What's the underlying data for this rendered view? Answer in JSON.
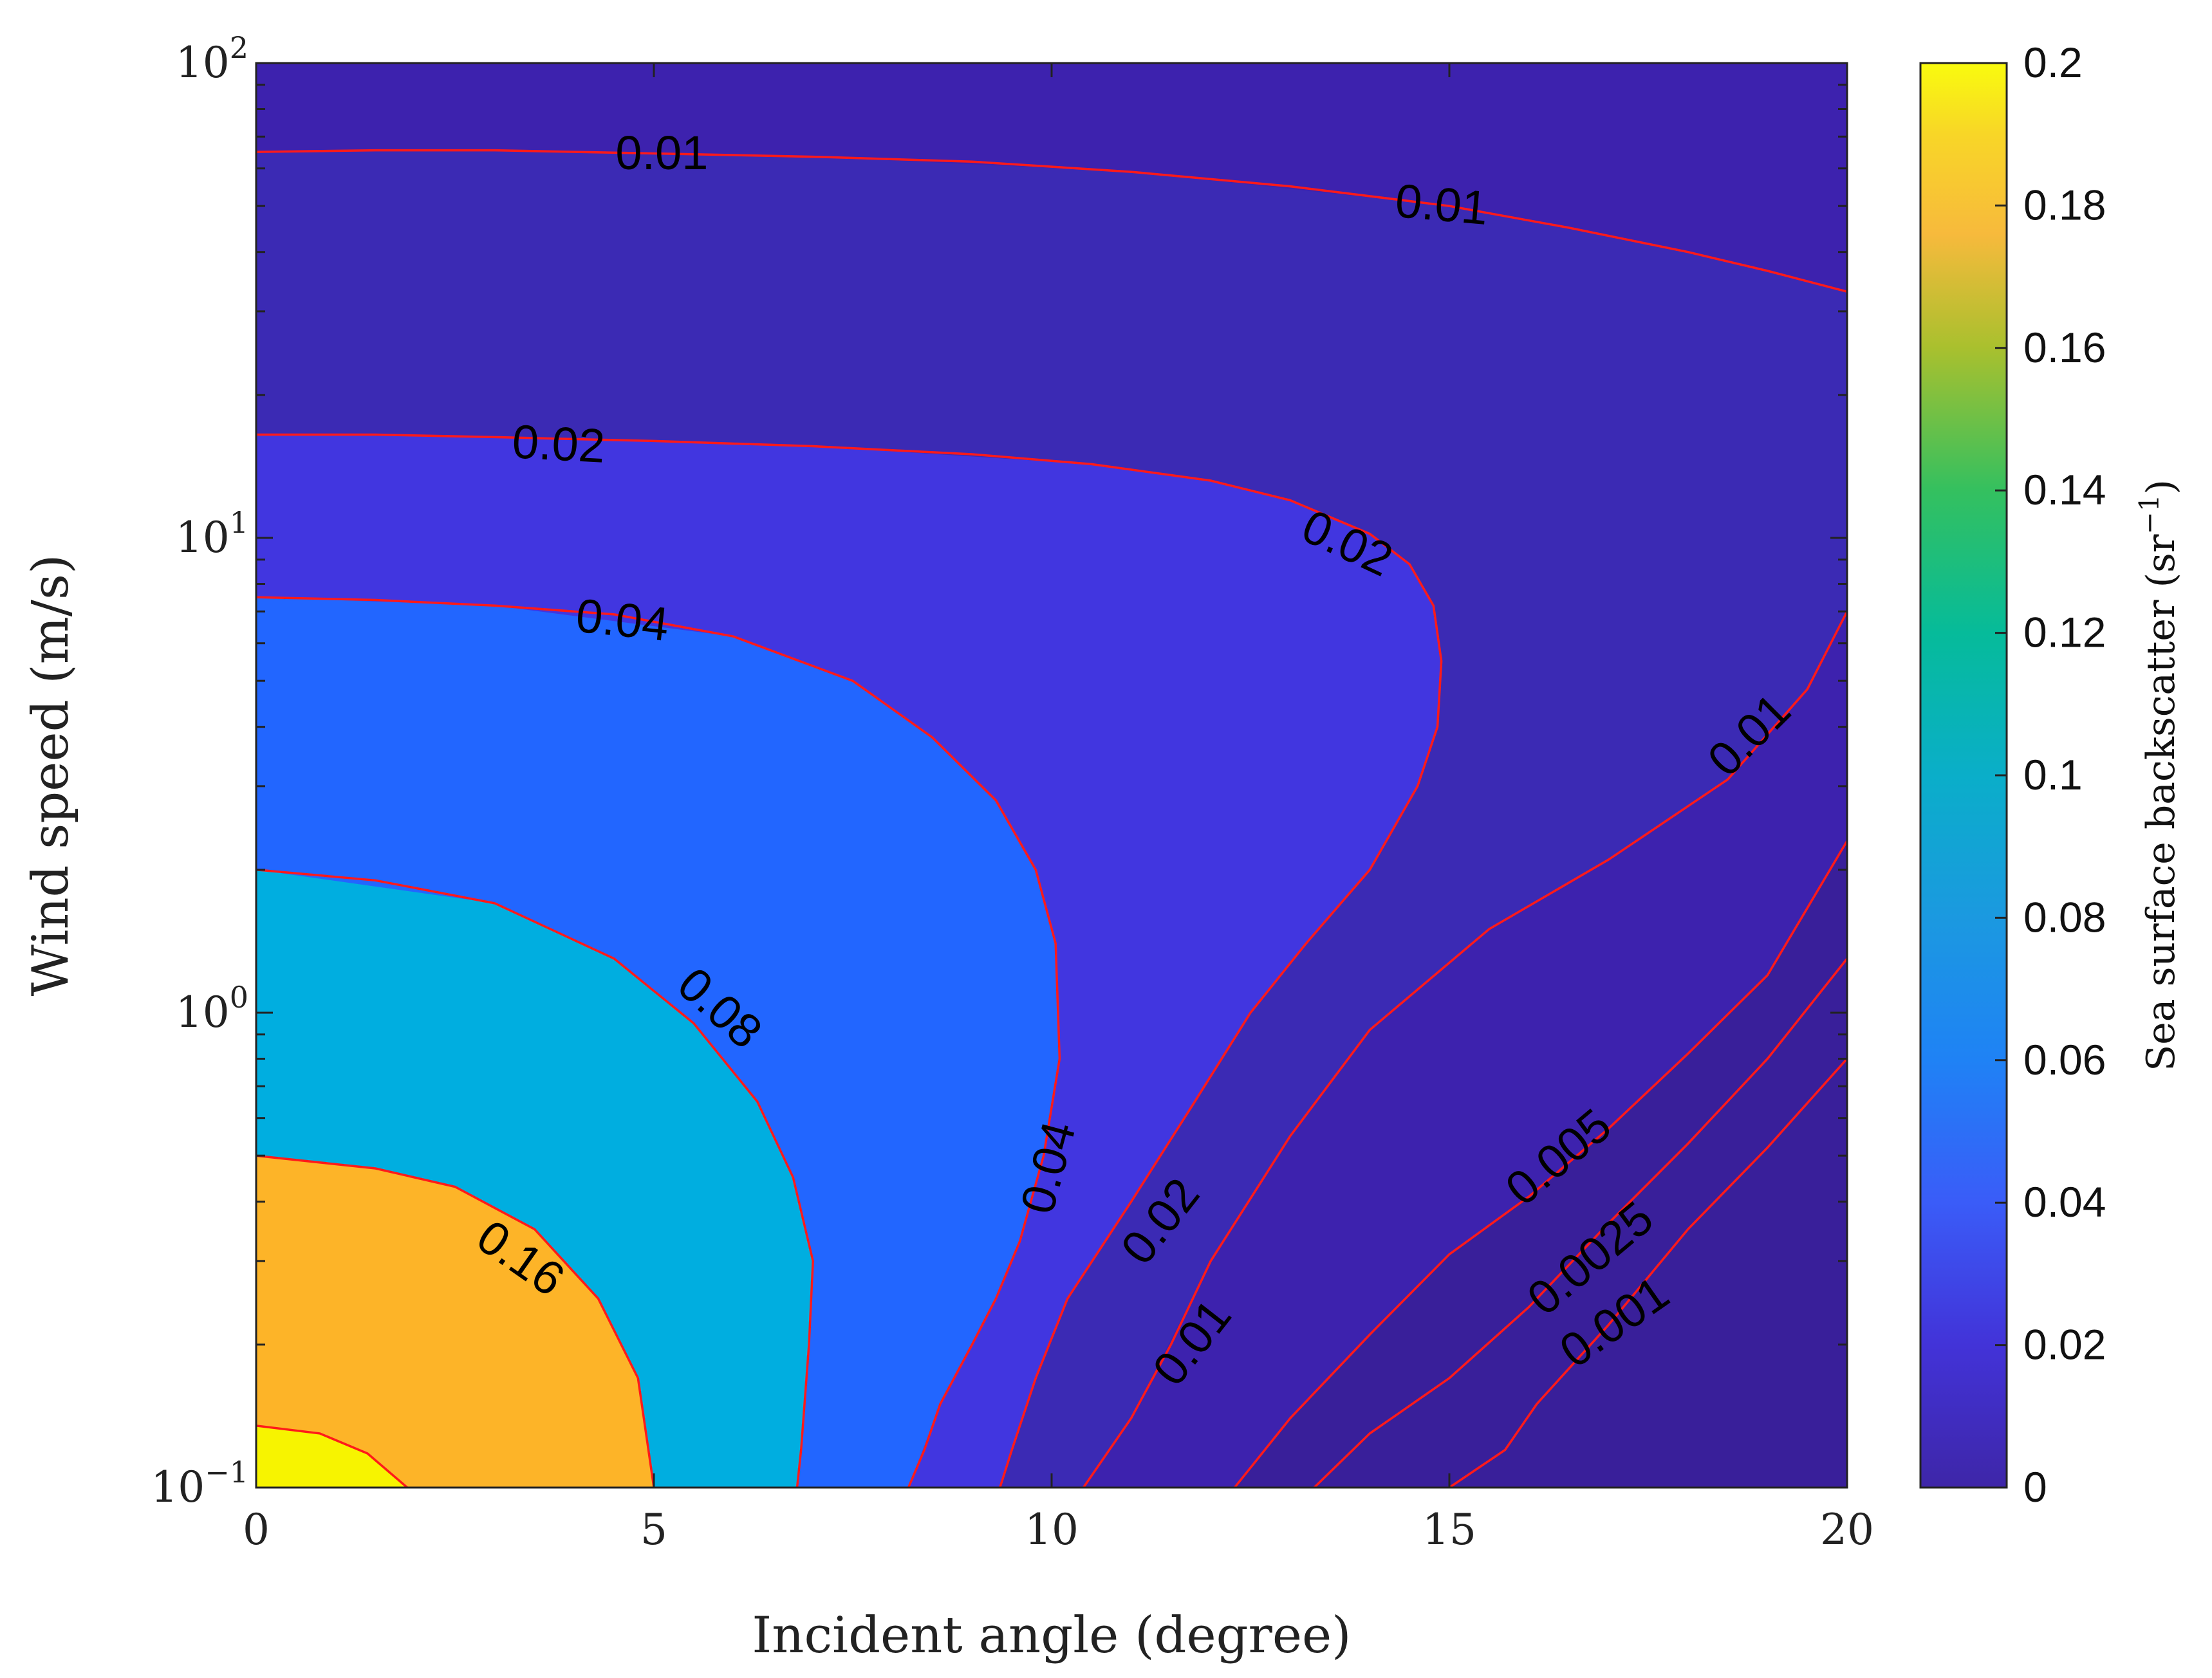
{
  "chart_data": {
    "type": "contour",
    "xlabel": "Incident angle (degree)",
    "ylabel": "Wind speed (m/s)",
    "xlim": [
      0,
      20
    ],
    "ylim": [
      0.1,
      100
    ],
    "yscale": "log",
    "x_ticks": [
      0,
      5,
      10,
      15,
      20
    ],
    "y_ticks": [
      {
        "value": 0.1,
        "base": "10",
        "exp": "−1"
      },
      {
        "value": 1,
        "base": "10",
        "exp": "0"
      },
      {
        "value": 10,
        "base": "10",
        "exp": "1"
      },
      {
        "value": 100,
        "base": "10",
        "exp": "2"
      }
    ],
    "colorbar": {
      "label": "Sea surface backscatter (sr",
      "label_exp": "−1",
      "label_close": ")",
      "range": [
        0,
        0.2
      ],
      "ticks": [
        "0",
        "0.02",
        "0.04",
        "0.06",
        "0.08",
        "0.1",
        "0.12",
        "0.14",
        "0.16",
        "0.18",
        "0.2"
      ]
    },
    "contour_levels": [
      0.001,
      0.0025,
      0.005,
      0.01,
      0.02,
      0.04,
      0.08,
      0.16
    ],
    "fill_colors": {
      "background": "#3d22ae",
      "corner": "#391f9a",
      "level_0.005": "#3b2ab4",
      "level_0.01": "#3b2ab4",
      "level_0.02": "#4136e0",
      "level_0.04": "#2266ff",
      "level_0.08": "#00aee0",
      "level_0.16": "#fdb428",
      "peak": "#f7f400"
    },
    "contours": [
      {
        "level": 0.01,
        "points": [
          [
            0,
            65
          ],
          [
            1.5,
            65.5
          ],
          [
            3,
            65.5
          ],
          [
            5,
            64.5
          ],
          [
            7,
            63.5
          ],
          [
            9,
            62
          ],
          [
            11,
            59
          ],
          [
            13,
            55
          ],
          [
            15,
            50
          ],
          [
            16.5,
            45
          ],
          [
            18,
            40
          ],
          [
            19,
            36.5
          ],
          [
            20,
            33
          ]
        ],
        "labels": [
          {
            "text": "0.01",
            "x": 5.1,
            "y": 63.5,
            "rot": 0
          },
          {
            "text": "0.01",
            "x": 14.9,
            "y": 49.5,
            "rot": 5
          }
        ]
      },
      {
        "level": 0.02,
        "points": [
          [
            0,
            16.5
          ],
          [
            1.5,
            16.5
          ],
          [
            3,
            16.3
          ],
          [
            5,
            16
          ],
          [
            7,
            15.6
          ],
          [
            9,
            15
          ],
          [
            10.5,
            14.3
          ],
          [
            12,
            13.2
          ],
          [
            13,
            12
          ],
          [
            14,
            10.2
          ],
          [
            14.5,
            8.8
          ],
          [
            14.8,
            7.2
          ],
          [
            14.9,
            5.5
          ],
          [
            14.85,
            4
          ],
          [
            14.6,
            3
          ],
          [
            14,
            2
          ],
          [
            13.2,
            1.4
          ],
          [
            12.5,
            1
          ],
          [
            11.8,
            0.65
          ],
          [
            11,
            0.4
          ],
          [
            10.2,
            0.25
          ],
          [
            9.8,
            0.17
          ],
          [
            9.5,
            0.12
          ],
          [
            9.35,
            0.1
          ]
        ],
        "labels": [
          {
            "text": "0.02",
            "x": 3.8,
            "y": 15.5,
            "rot": 3
          },
          {
            "text": "0.02",
            "x": 13.7,
            "y": 9.6,
            "rot": 25
          },
          {
            "text": "0.02",
            "x": 11.4,
            "y": 0.36,
            "rot": -52
          }
        ]
      },
      {
        "level": 0.04,
        "points": [
          [
            0,
            7.5
          ],
          [
            1.5,
            7.4
          ],
          [
            3,
            7.2
          ],
          [
            4.5,
            6.9
          ],
          [
            6,
            6.2
          ],
          [
            7.5,
            5
          ],
          [
            8.5,
            3.8
          ],
          [
            9.3,
            2.8
          ],
          [
            9.8,
            2
          ],
          [
            10.05,
            1.4
          ],
          [
            10.1,
            0.8
          ],
          [
            9.9,
            0.5
          ],
          [
            9.6,
            0.33
          ],
          [
            9.3,
            0.25
          ],
          [
            9,
            0.2
          ],
          [
            8.6,
            0.15
          ],
          [
            8.4,
            0.12
          ],
          [
            8.2,
            0.1
          ]
        ],
        "labels": [
          {
            "text": "0.04",
            "x": 10,
            "y": 0.47,
            "rot": -75
          },
          {
            "text": "0.04",
            "x": 4.6,
            "y": 6.6,
            "rot": 6
          }
        ]
      },
      {
        "level": 0.08,
        "points": [
          [
            0,
            2
          ],
          [
            1.5,
            1.9
          ],
          [
            3,
            1.7
          ],
          [
            4.5,
            1.3
          ],
          [
            5.5,
            0.95
          ],
          [
            6.3,
            0.65
          ],
          [
            6.75,
            0.45
          ],
          [
            7,
            0.3
          ],
          [
            6.95,
            0.2
          ],
          [
            6.85,
            0.12
          ],
          [
            6.8,
            0.1
          ]
        ],
        "labels": [
          {
            "text": "0.08",
            "x": 5.8,
            "y": 1.01,
            "rot": 42
          }
        ]
      },
      {
        "level": 0.16,
        "points": [
          [
            0,
            0.5
          ],
          [
            1.5,
            0.47
          ],
          [
            2.5,
            0.43
          ],
          [
            3.5,
            0.35
          ],
          [
            4.3,
            0.25
          ],
          [
            4.8,
            0.17
          ],
          [
            5,
            0.1
          ]
        ],
        "labels": [
          {
            "text": "0.16",
            "x": 3.3,
            "y": 0.3,
            "rot": 35
          }
        ]
      },
      {
        "level": 0.2,
        "points": [
          [
            0,
            0.135
          ],
          [
            0.8,
            0.13
          ],
          [
            1.4,
            0.118
          ],
          [
            1.9,
            0.1
          ]
        ],
        "labels": []
      },
      {
        "level": 0.01,
        "points": [
          [
            10.4,
            0.1
          ],
          [
            11,
            0.14
          ],
          [
            11.5,
            0.2
          ],
          [
            12,
            0.3
          ],
          [
            13,
            0.55
          ],
          [
            14,
            0.92
          ],
          [
            15.5,
            1.5
          ],
          [
            17,
            2.1
          ],
          [
            18.5,
            3.1
          ],
          [
            19.5,
            4.8
          ],
          [
            20,
            7
          ]
        ],
        "labels": [
          {
            "text": "0.01",
            "x": 18.8,
            "y": 3.8,
            "rot": -45
          },
          {
            "text": "0.01",
            "x": 11.8,
            "y": 0.2,
            "rot": -52
          }
        ]
      },
      {
        "level": 0.005,
        "points": [
          [
            12.3,
            0.1
          ],
          [
            13,
            0.14
          ],
          [
            14,
            0.21
          ],
          [
            15,
            0.31
          ],
          [
            16,
            0.41
          ],
          [
            17,
            0.57
          ],
          [
            18,
            0.82
          ],
          [
            19,
            1.2
          ],
          [
            20,
            2.3
          ]
        ],
        "labels": [
          {
            "text": "0.005",
            "x": 16.4,
            "y": 0.49,
            "rot": -40
          }
        ]
      },
      {
        "level": 0.0025,
        "points": [
          [
            13.3,
            0.1
          ],
          [
            14,
            0.13
          ],
          [
            15,
            0.17
          ],
          [
            16,
            0.24
          ],
          [
            17,
            0.36
          ],
          [
            18,
            0.53
          ],
          [
            19,
            0.8
          ],
          [
            20,
            1.3
          ]
        ],
        "labels": [
          {
            "text": "0.0025",
            "x": 16.8,
            "y": 0.3,
            "rot": -40
          }
        ]
      },
      {
        "level": 0.001,
        "points": [
          [
            15,
            0.1
          ],
          [
            15.7,
            0.12
          ],
          [
            16.1,
            0.15
          ],
          [
            17,
            0.22
          ],
          [
            18,
            0.35
          ],
          [
            19,
            0.52
          ],
          [
            20,
            0.8
          ]
        ],
        "labels": [
          {
            "text": "0.001",
            "x": 17.1,
            "y": 0.22,
            "rot": -35
          }
        ]
      }
    ],
    "fill_regions": [
      {
        "name": "fill-bg",
        "color": "#3d22ae",
        "closed": false,
        "points": [
          [
            0,
            100
          ],
          [
            20,
            100
          ],
          [
            20,
            0.1
          ],
          [
            0,
            0.1
          ]
        ]
      },
      {
        "name": "fill-0.005",
        "color": "#391f9a",
        "closed": false,
        "points": [
          [
            12.3,
            0.1
          ],
          [
            13,
            0.14
          ],
          [
            14,
            0.21
          ],
          [
            15,
            0.31
          ],
          [
            16,
            0.41
          ],
          [
            17,
            0.57
          ],
          [
            18,
            0.82
          ],
          [
            19,
            1.2
          ],
          [
            20,
            2.3
          ],
          [
            20,
            0.1
          ]
        ]
      },
      {
        "name": "fill-0.01-upper",
        "color": "#3b2ab4",
        "closed": false,
        "points": [
          [
            0,
            65
          ],
          [
            3,
            65.5
          ],
          [
            7,
            63.5
          ],
          [
            11,
            59
          ],
          [
            15,
            50
          ],
          [
            18,
            40
          ],
          [
            20,
            33
          ],
          [
            20,
            7
          ],
          [
            19.5,
            4.8
          ],
          [
            18.5,
            3.1
          ],
          [
            17,
            2.1
          ],
          [
            15.5,
            1.5
          ],
          [
            14,
            0.92
          ],
          [
            13,
            0.55
          ],
          [
            12,
            0.3
          ],
          [
            11,
            0.14
          ],
          [
            10.4,
            0.1
          ],
          [
            0,
            0.1
          ]
        ]
      },
      {
        "name": "fill-0.02",
        "color": "#4136e0",
        "closed": false,
        "points": [
          [
            0,
            16.5
          ],
          [
            3,
            16.3
          ],
          [
            7,
            15.6
          ],
          [
            10.5,
            14.3
          ],
          [
            12,
            13.2
          ],
          [
            13,
            12
          ],
          [
            14,
            10.2
          ],
          [
            14.5,
            8.8
          ],
          [
            14.8,
            7.2
          ],
          [
            14.9,
            5.5
          ],
          [
            14.85,
            4
          ],
          [
            14.6,
            3
          ],
          [
            14,
            2
          ],
          [
            13.2,
            1.4
          ],
          [
            12.5,
            1
          ],
          [
            11.8,
            0.65
          ],
          [
            11,
            0.4
          ],
          [
            10.2,
            0.25
          ],
          [
            9.8,
            0.17
          ],
          [
            9.35,
            0.1
          ],
          [
            0,
            0.1
          ]
        ]
      },
      {
        "name": "fill-0.04",
        "color": "#2266ff",
        "closed": false,
        "points": [
          [
            0,
            7.5
          ],
          [
            3,
            7.2
          ],
          [
            6,
            6.2
          ],
          [
            7.5,
            5
          ],
          [
            8.5,
            3.8
          ],
          [
            9.3,
            2.8
          ],
          [
            9.8,
            2
          ],
          [
            10.05,
            1.4
          ],
          [
            10.1,
            0.8
          ],
          [
            9.9,
            0.5
          ],
          [
            9.6,
            0.33
          ],
          [
            9.3,
            0.25
          ],
          [
            9,
            0.2
          ],
          [
            8.6,
            0.15
          ],
          [
            8.2,
            0.1
          ],
          [
            0,
            0.1
          ]
        ]
      },
      {
        "name": "fill-0.08",
        "color": "#00aee0",
        "closed": false,
        "points": [
          [
            0,
            2
          ],
          [
            3,
            1.7
          ],
          [
            4.5,
            1.3
          ],
          [
            5.5,
            0.95
          ],
          [
            6.3,
            0.65
          ],
          [
            6.75,
            0.45
          ],
          [
            7,
            0.3
          ],
          [
            6.95,
            0.2
          ],
          [
            6.8,
            0.1
          ],
          [
            0,
            0.1
          ]
        ]
      },
      {
        "name": "fill-0.16",
        "color": "#fdb428",
        "closed": false,
        "points": [
          [
            0,
            0.5
          ],
          [
            1.5,
            0.47
          ],
          [
            2.5,
            0.43
          ],
          [
            3.5,
            0.35
          ],
          [
            4.3,
            0.25
          ],
          [
            4.8,
            0.17
          ],
          [
            5,
            0.1
          ],
          [
            0,
            0.1
          ]
        ]
      },
      {
        "name": "fill-peak",
        "color": "#f7f400",
        "closed": false,
        "points": [
          [
            0,
            0.135
          ],
          [
            0.8,
            0.13
          ],
          [
            1.4,
            0.118
          ],
          [
            1.9,
            0.1
          ],
          [
            0,
            0.1
          ]
        ]
      }
    ]
  }
}
